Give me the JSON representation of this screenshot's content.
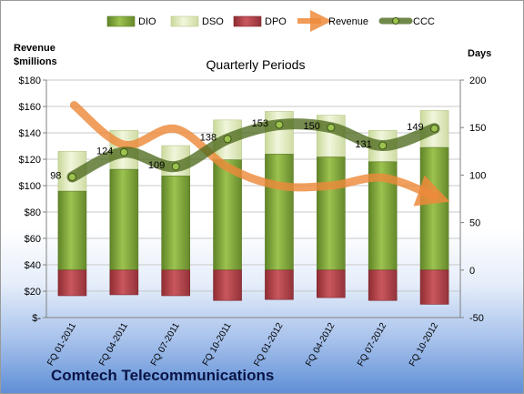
{
  "company": "Comtech Telecommunications",
  "chart_data": {
    "type": "bar",
    "title": "Quarterly Periods",
    "categories": [
      "FQ 01-2011",
      "FQ 04-2011",
      "FQ 07-2011",
      "FQ 10-2011",
      "FQ 01-2012",
      "FQ 04-2012",
      "FQ 07-2012",
      "FQ 10-2012"
    ],
    "left_axis": {
      "label_line1": "Revenue",
      "label_line2": "$millions",
      "ylim": [
        0,
        180
      ],
      "ticks": [
        "$-",
        "$20",
        "$40",
        "$60",
        "$80",
        "$100",
        "$120",
        "$140",
        "$160",
        "$180"
      ]
    },
    "right_axis": {
      "label": "Days",
      "ylim": [
        -50,
        200
      ],
      "ticks": [
        "-50",
        "0",
        "50",
        "100",
        "150",
        "200"
      ]
    },
    "legend": {
      "placement": "top",
      "items": [
        "DIO",
        "DSO",
        "DPO",
        "Revenue",
        "CCC"
      ]
    },
    "series": [
      {
        "name": "DIO",
        "axis": "right",
        "values": [
          83,
          106,
          99,
          116,
          122,
          119,
          114,
          129
        ]
      },
      {
        "name": "DSO",
        "axis": "right",
        "values": [
          42,
          41,
          32,
          42,
          45,
          44,
          33,
          39
        ]
      },
      {
        "name": "DPO",
        "axis": "right",
        "values": [
          -27,
          -26,
          -27,
          -32,
          -31,
          -29,
          -32,
          -36
        ]
      },
      {
        "name": "Revenue",
        "axis": "left",
        "values": [
          161,
          131,
          143,
          114,
          100,
          100,
          106,
          92
        ]
      },
      {
        "name": "CCC",
        "axis": "right",
        "values": [
          98,
          124,
          109,
          138,
          153,
          150,
          131,
          149
        ]
      }
    ],
    "data_labels": [
      "98",
      "124",
      "109",
      "138",
      "153",
      "150",
      "131",
      "149"
    ],
    "colors": {
      "DIO": "#7ea33a",
      "DSO": "#dfeabb",
      "DPO": "#b4444a",
      "Revenue": "#ed8a3b",
      "CCC": "#4e6a1e"
    },
    "grid": true
  }
}
